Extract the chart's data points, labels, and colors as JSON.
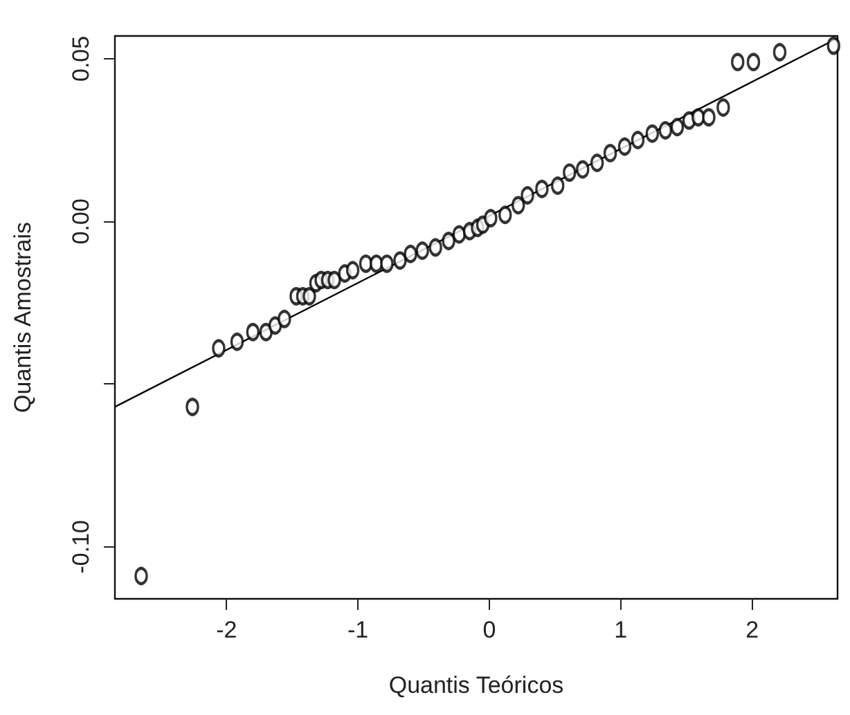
{
  "chart_data": {
    "type": "scatter",
    "xlabel": "Quantis Teóricos",
    "ylabel": "Quantis Amostrais",
    "xlim": [
      -2.85,
      2.65
    ],
    "ylim": [
      -0.116,
      0.057
    ],
    "xticks": [
      -2,
      -1,
      0,
      1,
      2
    ],
    "yticks": [
      {
        "value": -0.1,
        "label": "-0.10"
      },
      {
        "value": -0.05,
        "label": null
      },
      {
        "value": 0,
        "label": "0.00"
      },
      {
        "value": 0.05,
        "label": "0.05"
      }
    ],
    "grid": false,
    "marker": "circle",
    "series": [
      {
        "color": "#000000",
        "x": [
          -2.65,
          -2.26,
          -2.06,
          -1.92,
          -1.8,
          -1.7,
          -1.63,
          -1.56,
          -1.47,
          -1.42,
          -1.37,
          -1.32,
          -1.28,
          -1.23,
          -1.18,
          -1.1,
          -1.04,
          -0.94,
          -0.86,
          -0.78,
          -0.68,
          -0.6,
          -0.51,
          -0.41,
          -0.31,
          -0.23,
          -0.15,
          -0.09,
          -0.05,
          0.01,
          0.12,
          0.22,
          0.29,
          0.4,
          0.52,
          0.61,
          0.71,
          0.82,
          0.92,
          1.03,
          1.13,
          1.24,
          1.34,
          1.43,
          1.52,
          1.59,
          1.67,
          1.78,
          1.89,
          2.01,
          2.21,
          2.62
        ],
        "values": [
          -0.109,
          -0.057,
          -0.039,
          -0.037,
          -0.034,
          -0.034,
          -0.032,
          -0.03,
          -0.023,
          -0.023,
          -0.023,
          -0.019,
          -0.018,
          -0.018,
          -0.018,
          -0.016,
          -0.015,
          -0.013,
          -0.013,
          -0.013,
          -0.012,
          -0.01,
          -0.009,
          -0.008,
          -0.006,
          -0.004,
          -0.003,
          -0.002,
          -0.001,
          0.001,
          0.002,
          0.005,
          0.008,
          0.01,
          0.011,
          0.015,
          0.016,
          0.018,
          0.021,
          0.023,
          0.025,
          0.027,
          0.028,
          0.029,
          0.031,
          0.032,
          0.032,
          0.035,
          0.049,
          0.049,
          0.052,
          0.054
        ]
      },
      {
        "type": "line",
        "color": "#000000",
        "marker": "none",
        "x": [
          -2.85,
          2.65
        ],
        "values": [
          -0.057,
          0.0563
        ]
      }
    ]
  }
}
